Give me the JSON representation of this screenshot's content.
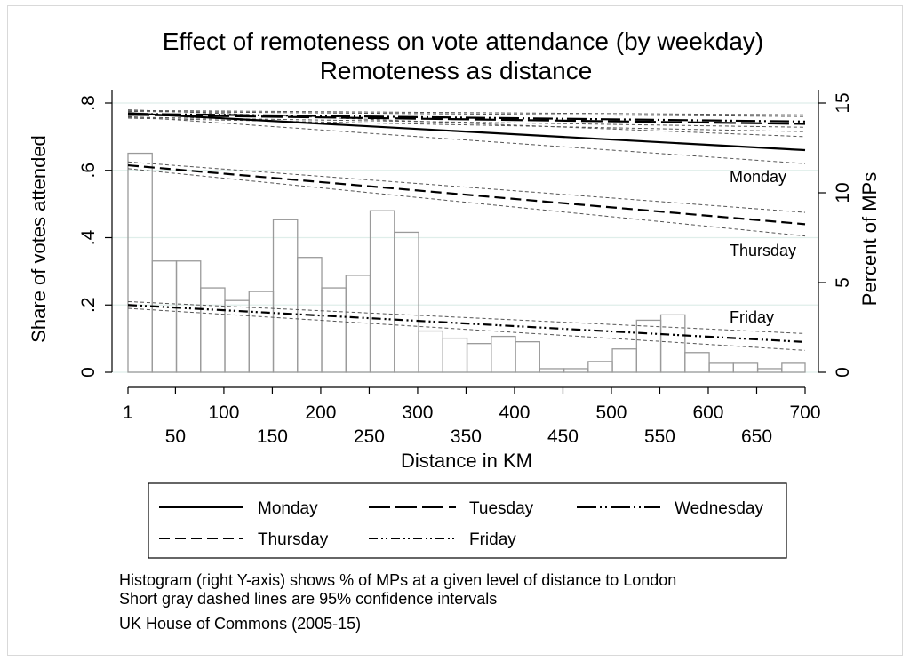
{
  "chart_data": {
    "type": "line",
    "title": "Effect of remoteness on vote attendance (by weekday)",
    "subtitle": "Remoteness as distance",
    "xlabel": "Distance in KM",
    "ylabel_left": "Share of votes attended",
    "ylabel_right": "Percent of MPs",
    "xlim": [
      1,
      700
    ],
    "ylim_left": [
      0,
      0.8
    ],
    "ylim_right": [
      0,
      15
    ],
    "x_ticks_upper": [
      "1",
      "100",
      "200",
      "300",
      "400",
      "500",
      "600",
      "700"
    ],
    "x_ticks_lower": [
      "50",
      "150",
      "250",
      "350",
      "450",
      "550",
      "650"
    ],
    "y_ticks_left": [
      ".8",
      ".6",
      ".4",
      ".2",
      "0"
    ],
    "y_ticks_right": [
      "15",
      "10",
      "5",
      "0"
    ],
    "series": [
      {
        "name": "Monday",
        "style": "solid",
        "x": [
          1,
          700
        ],
        "y": [
          0.77,
          0.66
        ],
        "ci_low": [
          0.76,
          0.62
        ],
        "ci_high": [
          0.78,
          0.7
        ]
      },
      {
        "name": "Tuesday",
        "style": "longdash",
        "x": [
          1,
          700
        ],
        "y": [
          0.765,
          0.738
        ],
        "ci_low": [
          0.755,
          0.715
        ],
        "ci_high": [
          0.775,
          0.76
        ]
      },
      {
        "name": "Wednesday",
        "style": "longdash-dot-dot",
        "x": [
          1,
          700
        ],
        "y": [
          0.768,
          0.745
        ],
        "ci_low": [
          0.758,
          0.728
        ],
        "ci_high": [
          0.778,
          0.765
        ]
      },
      {
        "name": "Thursday",
        "style": "shortdash",
        "x": [
          1,
          700
        ],
        "y": [
          0.615,
          0.44
        ],
        "ci_low": [
          0.605,
          0.405
        ],
        "ci_high": [
          0.625,
          0.475
        ]
      },
      {
        "name": "Friday",
        "style": "dash-dot-dot",
        "x": [
          1,
          700
        ],
        "y": [
          0.2,
          0.09
        ],
        "ci_low": [
          0.19,
          0.065
        ],
        "ci_high": [
          0.21,
          0.115
        ]
      }
    ],
    "histogram": {
      "axis": "right",
      "bin_width": 25,
      "start": 1,
      "values": [
        12.2,
        6.2,
        6.2,
        4.7,
        4.0,
        4.5,
        8.5,
        6.4,
        4.7,
        5.4,
        9.0,
        7.8,
        2.3,
        1.9,
        1.6,
        2.0,
        1.7,
        0.2,
        0.2,
        0.6,
        1.3,
        2.9,
        3.2,
        1.1,
        0.5,
        0.5,
        0.2,
        0.5
      ]
    },
    "inline_labels": [
      "Monday",
      "Thursday",
      "Friday"
    ],
    "legend": {
      "placement": "bottom",
      "entries": [
        "Monday",
        "Tuesday",
        "Wednesday",
        "Thursday",
        "Friday"
      ]
    },
    "notes": [
      "Histogram (right Y-axis) shows % of MPs at a given level of distance to London",
      "Short gray dashed lines are 95% confidence intervals",
      "UK House of Commons (2005-15)"
    ],
    "colors": {
      "lines": "#000000",
      "ci": "#555555",
      "histogram": "#9a9a9a",
      "grid": "#dfeeea"
    }
  }
}
